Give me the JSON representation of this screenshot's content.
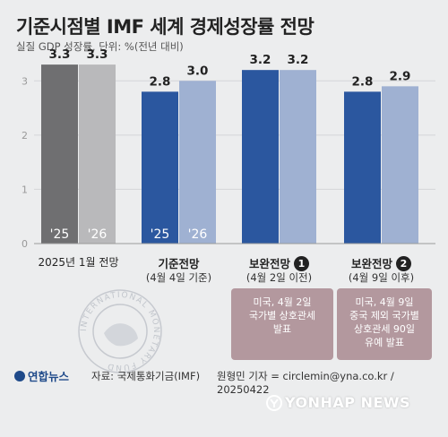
{
  "header": {
    "title": "기준시점별 IMF 세계 경제성장률 전망",
    "subtitle": "실질 GDP 성장률, 단위: %(전년 대비)"
  },
  "chart_data": {
    "type": "bar",
    "ylim": [
      0,
      3.5
    ],
    "yticks": [
      "0",
      "1",
      "2",
      "3"
    ],
    "grid": true,
    "groups": [
      {
        "label": "2025년 1월 전망",
        "sub": "",
        "bars": [
          {
            "year": "'25",
            "value": 3.3,
            "color": "#6f6f71"
          },
          {
            "year": "'26",
            "value": 3.3,
            "color": "#b9b9bb"
          }
        ]
      },
      {
        "label": "기준전망",
        "sub": "(4월 4일 기준)",
        "bars": [
          {
            "year": "'25",
            "value": 2.8,
            "color": "#2b579f"
          },
          {
            "year": "'26",
            "value": 3.0,
            "color": "#9fb1d2"
          }
        ]
      },
      {
        "label": "보완전망",
        "badge": "1",
        "sub": "(4월 2일 이전)",
        "bars": [
          {
            "year": "",
            "value": 3.2,
            "color": "#2b579f"
          },
          {
            "year": "",
            "value": 3.2,
            "color": "#9fb1d2"
          }
        ]
      },
      {
        "label": "보완전망",
        "badge": "2",
        "sub": "(4월 9일 이후)",
        "bars": [
          {
            "year": "",
            "value": 2.8,
            "color": "#2b579f"
          },
          {
            "year": "",
            "value": 2.9,
            "color": "#9fb1d2"
          }
        ]
      }
    ],
    "notes": [
      [
        "미국, 4월 2일",
        "국가별 상호관세",
        "발표"
      ],
      [
        "미국, 4월 9일",
        "중국 제외 국가별",
        "상호관세 90일",
        "유예 발표"
      ]
    ]
  },
  "footer": {
    "logo": "연합뉴스",
    "source": "자료: 국제통화기금(IMF)",
    "credit": "원형민 기자 = circlemin@yna.co.kr / 20250422",
    "watermark": "YONHAP NEWS",
    "seal_text": "INTERNATIONAL MONETARY FUND"
  }
}
